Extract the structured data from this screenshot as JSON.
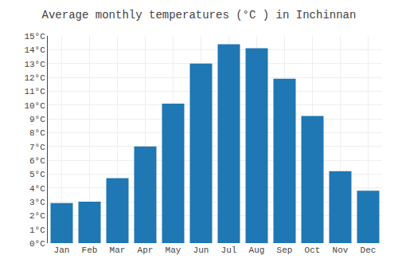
{
  "chart_data": {
    "type": "bar",
    "title": "Average monthly temperatures (°C ) in Inchinnan",
    "categories": [
      "Jan",
      "Feb",
      "Mar",
      "Apr",
      "May",
      "Jun",
      "Jul",
      "Aug",
      "Sep",
      "Oct",
      "Nov",
      "Dec"
    ],
    "values": [
      2.9,
      3.0,
      4.7,
      7.0,
      10.1,
      13.0,
      14.4,
      14.1,
      11.9,
      9.2,
      5.2,
      3.8
    ],
    "ylim": [
      0,
      15
    ],
    "yticks": [
      {
        "value": 0,
        "label": "0°C"
      },
      {
        "value": 1,
        "label": "1°C"
      },
      {
        "value": 2,
        "label": "2°C"
      },
      {
        "value": 3,
        "label": "3°C"
      },
      {
        "value": 4,
        "label": "4°C"
      },
      {
        "value": 5,
        "label": "5°C"
      },
      {
        "value": 6,
        "label": "6°C"
      },
      {
        "value": 7,
        "label": "7°C"
      },
      {
        "value": 8,
        "label": "8°C"
      },
      {
        "value": 9,
        "label": "9°C"
      },
      {
        "value": 10,
        "label": "10°C"
      },
      {
        "value": 11,
        "label": "11°C"
      },
      {
        "value": 12,
        "label": "12°C"
      },
      {
        "value": 13,
        "label": "13°C"
      },
      {
        "value": 14,
        "label": "14°C"
      },
      {
        "value": 15,
        "label": "15°C"
      }
    ],
    "grid": true
  }
}
